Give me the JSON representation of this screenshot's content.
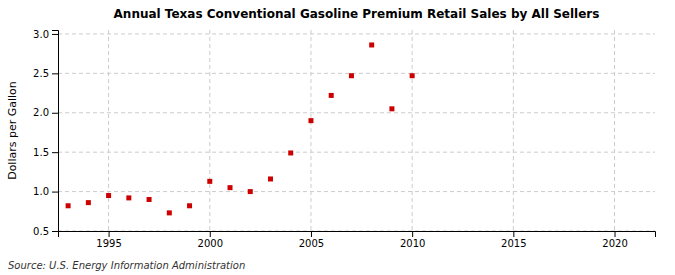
{
  "chart_data": {
    "type": "scatter",
    "title": "Annual Texas Conventional Gasoline Premium Retail Sales by All Sellers",
    "ylabel": "Dollars per Gallon",
    "source": "Source: U.S. Energy Information Administration",
    "x": [
      1993,
      1994,
      1995,
      1996,
      1997,
      1998,
      1999,
      2000,
      2001,
      2002,
      2003,
      2004,
      2005,
      2006,
      2007,
      2008,
      2009,
      2010
    ],
    "values": [
      0.82,
      0.86,
      0.95,
      0.92,
      0.9,
      0.73,
      0.82,
      1.13,
      1.05,
      1.0,
      1.16,
      1.49,
      1.9,
      2.22,
      2.47,
      2.86,
      2.05,
      2.47
    ],
    "color": "#cc0000",
    "marker": "square",
    "xlim": [
      1992.5,
      2022
    ],
    "ylim": [
      0.5,
      3.05
    ],
    "xticks": [
      1995,
      2000,
      2005,
      2010,
      2015,
      2020
    ],
    "yticks": [
      0.5,
      {
        "value": 1.0,
        "label": "1.0"
      },
      1.5,
      {
        "value": 2.0,
        "label": "2.0"
      },
      2.5,
      {
        "value": 3.0,
        "label": "3.0"
      }
    ],
    "grid": true
  }
}
